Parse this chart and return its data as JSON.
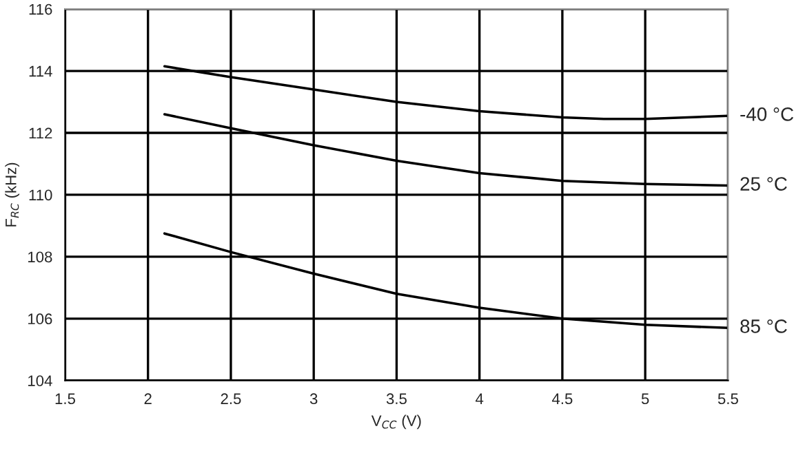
{
  "chart_data": {
    "type": "line",
    "xlabel": "V$_{CC}$ (V)",
    "ylabel": "F$_{RC}$ (kHz)",
    "x": [
      2.1,
      2.5,
      3,
      3.5,
      4,
      4.5,
      4.75,
      5,
      5.5
    ],
    "series": [
      {
        "name": "-40 °C",
        "color": "#000000",
        "values": [
          114.15,
          113.8,
          113.4,
          113.0,
          112.7,
          112.5,
          112.45,
          112.45,
          112.55
        ]
      },
      {
        "name": "25 °C",
        "color": "#000000",
        "values": [
          112.6,
          112.15,
          111.6,
          111.1,
          110.7,
          110.45,
          110.4,
          110.35,
          110.3
        ]
      },
      {
        "name": "85 °C",
        "color": "#000000",
        "values": [
          108.75,
          108.15,
          107.45,
          106.8,
          106.35,
          106.0,
          105.9,
          105.8,
          105.7
        ]
      }
    ],
    "xlim": [
      1.5,
      5.5
    ],
    "xticks": [
      1.5,
      2,
      2.5,
      3,
      3.5,
      4,
      4.5,
      5,
      5.5
    ],
    "ylim": [
      104,
      116
    ],
    "yticks": [
      104,
      106,
      108,
      110,
      112,
      114,
      116
    ],
    "grid": true,
    "marker": "none",
    "line_style": "solid",
    "legend": false
  }
}
